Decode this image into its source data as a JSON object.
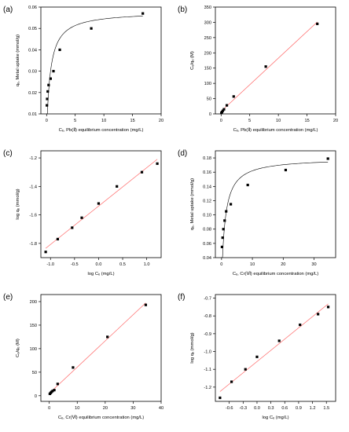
{
  "chart_data": [
    {
      "panel": "(a)",
      "type": "scatter",
      "fit": "curve",
      "line_color": "#000000",
      "xlabel": "Cₑ, Pb(Ⅱ) equilibrium concentration (mg/L)",
      "ylabel": "qₑ, Metal uptake (mmol/g)",
      "xlim": [
        -1,
        20
      ],
      "ylim": [
        0.01,
        0.06
      ],
      "xticks": [
        "0",
        "5",
        "10",
        "15",
        "20"
      ],
      "xtick_values": [
        0,
        5,
        10,
        15,
        20
      ],
      "yticks": [
        "0.01",
        "0.02",
        "0.03",
        "0.04",
        "0.05",
        "0.06"
      ],
      "ytick_values": [
        0.01,
        0.02,
        0.03,
        0.04,
        0.05,
        0.06
      ],
      "x": [
        0.05,
        0.1,
        0.2,
        0.35,
        0.7,
        1.2,
        2.3,
        7.8,
        16.8
      ],
      "y": [
        0.014,
        0.017,
        0.0205,
        0.0235,
        0.0265,
        0.03,
        0.04,
        0.05,
        0.057
      ]
    },
    {
      "panel": "(b)",
      "type": "scatter",
      "fit": "linear",
      "line_color": "#ff6666",
      "xlabel": "Cₑ, Pb(Ⅱ) equilibrium concentration (mg/L)",
      "ylabel": "Cₑ/qₑ (M)",
      "xlim": [
        -1,
        20
      ],
      "ylim": [
        0,
        350
      ],
      "xticks": [
        "0",
        "5",
        "10",
        "15",
        "20"
      ],
      "xtick_values": [
        0,
        5,
        10,
        15,
        20
      ],
      "yticks": [
        "0",
        "50",
        "100",
        "150",
        "200",
        "250",
        "300",
        "350"
      ],
      "ytick_values": [
        0,
        50,
        100,
        150,
        200,
        250,
        300,
        350
      ],
      "x": [
        0.05,
        0.15,
        0.3,
        0.5,
        1.0,
        2.2,
        7.8,
        16.8
      ],
      "y": [
        3,
        6,
        10,
        15,
        28,
        57,
        155,
        295
      ]
    },
    {
      "panel": "(c)",
      "type": "scatter",
      "fit": "linear",
      "line_color": "#ff6666",
      "xlabel": "log Cₑ (mg/L)",
      "ylabel": "log qₑ (mmol/g)",
      "xlim": [
        -1.2,
        1.3
      ],
      "ylim": [
        -1.9,
        -1.15
      ],
      "xticks": [
        "-1.0",
        "-0.5",
        "0.0",
        "0.5",
        "1.0"
      ],
      "xtick_values": [
        -1.0,
        -0.5,
        0.0,
        0.5,
        1.0
      ],
      "yticks": [
        "-1.8",
        "-1.6",
        "-1.4",
        "-1.2"
      ],
      "ytick_values": [
        -1.8,
        -1.6,
        -1.4,
        -1.2
      ],
      "x": [
        -1.1,
        -0.85,
        -0.55,
        -0.35,
        0.0,
        0.38,
        0.9,
        1.22
      ],
      "y": [
        -1.86,
        -1.77,
        -1.69,
        -1.62,
        -1.52,
        -1.4,
        -1.3,
        -1.24
      ]
    },
    {
      "panel": "(d)",
      "type": "scatter",
      "fit": "curve",
      "line_color": "#000000",
      "xlabel": "Cₑ, Cr(Ⅵ) equilibrium concentration (mg/L)",
      "ylabel": "qₑ, Metal uptake (mmol/g)",
      "xlim": [
        -2,
        37
      ],
      "ylim": [
        0.04,
        0.19
      ],
      "xticks": [
        "0",
        "10",
        "20",
        "30"
      ],
      "xtick_values": [
        0,
        10,
        20,
        30
      ],
      "yticks": [
        "0.04",
        "0.06",
        "0.08",
        "0.10",
        "0.12",
        "0.14",
        "0.16",
        "0.18"
      ],
      "ytick_values": [
        0.04,
        0.06,
        0.08,
        0.1,
        0.12,
        0.14,
        0.16,
        0.18
      ],
      "x": [
        0.15,
        0.35,
        0.6,
        1.0,
        1.5,
        3.0,
        8.5,
        20.8,
        34.5
      ],
      "y": [
        0.055,
        0.068,
        0.08,
        0.092,
        0.105,
        0.115,
        0.142,
        0.163,
        0.179
      ]
    },
    {
      "panel": "(e)",
      "type": "scatter",
      "fit": "linear",
      "line_color": "#ff6666",
      "xlabel": "Cₑ, Cr(Ⅵ) equilibrium concentration (mg/L)",
      "ylabel": "Cₑ/qₑ (M)",
      "xlim": [
        -3,
        40
      ],
      "ylim": [
        -12,
        215
      ],
      "xticks": [
        "0",
        "10",
        "20",
        "30",
        "40"
      ],
      "xtick_values": [
        0,
        10,
        20,
        30,
        40
      ],
      "yticks": [
        "0",
        "50",
        "100",
        "150",
        "200"
      ],
      "ytick_values": [
        0,
        50,
        100,
        150,
        200
      ],
      "x": [
        0.2,
        0.5,
        0.8,
        1.2,
        1.8,
        3.0,
        8.5,
        20.8,
        34.5
      ],
      "y": [
        4,
        6,
        8,
        10,
        12,
        25,
        60,
        125,
        193
      ]
    },
    {
      "panel": "(f)",
      "type": "scatter",
      "fit": "linear",
      "line_color": "#ff6666",
      "xlabel": "log Cₑ (mg/L)",
      "ylabel": "log qₑ (mmol/g)",
      "xlim": [
        -0.9,
        1.7
      ],
      "ylim": [
        -1.28,
        -0.68
      ],
      "xticks": [
        "-0.6",
        "-0.3",
        "0.0",
        "0.3",
        "0.6",
        "0.9",
        "1.2",
        "1.5"
      ],
      "xtick_values": [
        -0.6,
        -0.3,
        0.0,
        0.3,
        0.6,
        0.9,
        1.2,
        1.5
      ],
      "yticks": [
        "-1.2",
        "-1.1",
        "-1.0",
        "-0.9",
        "-0.8",
        "-0.7"
      ],
      "ytick_values": [
        -1.2,
        -1.1,
        -1.0,
        -0.9,
        -0.8,
        -0.7
      ],
      "x": [
        -0.8,
        -0.55,
        -0.25,
        0.0,
        0.48,
        0.93,
        1.32,
        1.54
      ],
      "y": [
        -1.26,
        -1.17,
        -1.1,
        -1.03,
        -0.94,
        -0.85,
        -0.79,
        -0.75
      ]
    }
  ]
}
